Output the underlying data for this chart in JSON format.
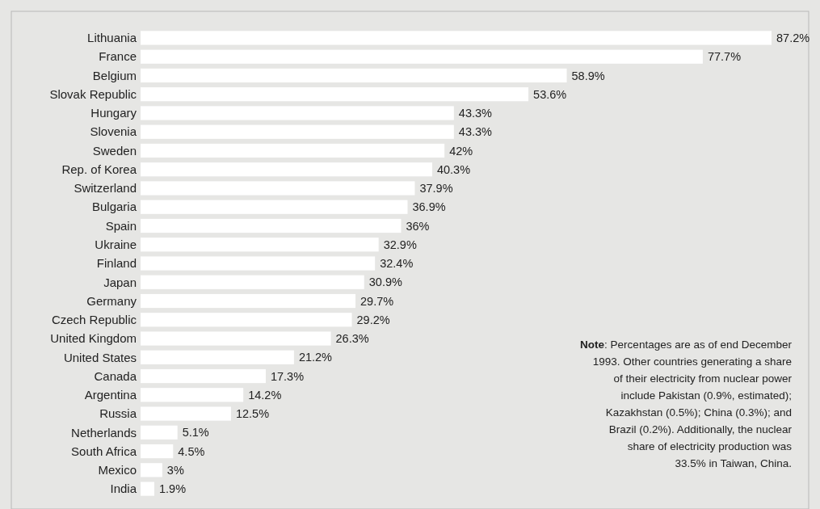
{
  "chart_data": {
    "type": "bar",
    "orientation": "horizontal",
    "categories": [
      "Lithuania",
      "France",
      "Belgium",
      "Slovak Republic",
      "Hungary",
      "Slovenia",
      "Sweden",
      "Rep. of Korea",
      "Switzerland",
      "Bulgaria",
      "Spain",
      "Ukraine",
      "Finland",
      "Japan",
      "Germany",
      "Czech Republic",
      "United Kingdom",
      "United States",
      "Canada",
      "Argentina",
      "Russia",
      "Netherlands",
      "South Africa",
      "Mexico",
      "India"
    ],
    "values": [
      87.2,
      77.7,
      58.9,
      53.6,
      43.3,
      43.3,
      42,
      40.3,
      37.9,
      36.9,
      36,
      32.9,
      32.4,
      30.9,
      29.7,
      29.2,
      26.3,
      21.2,
      17.3,
      14.2,
      12.5,
      5.1,
      4.5,
      3,
      1.9
    ],
    "value_labels": [
      "87.2%",
      "77.7%",
      "58.9%",
      "53.6%",
      "43.3%",
      "43.3%",
      "42%",
      "40.3%",
      "37.9%",
      "36.9%",
      "36%",
      "32.9%",
      "32.4%",
      "30.9%",
      "29.7%",
      "29.2%",
      "26.3%",
      "21.2%",
      "17.3%",
      "14.2%",
      "12.5%",
      "5.1%",
      "4.5%",
      "3%",
      "1.9%"
    ],
    "color": "#ffffff",
    "annotations": [
      "Note: Percentages are as of end December 1993. Other countries generating a share of their electricity from nuclear power include Pakistan (0.9%, estimated); Kazakhstan (0.5%); China (0.3%); and Brazil (0.2%). Additionally, the nuclear share of electricity production was 33.5% in Taiwan, China."
    ]
  }
}
